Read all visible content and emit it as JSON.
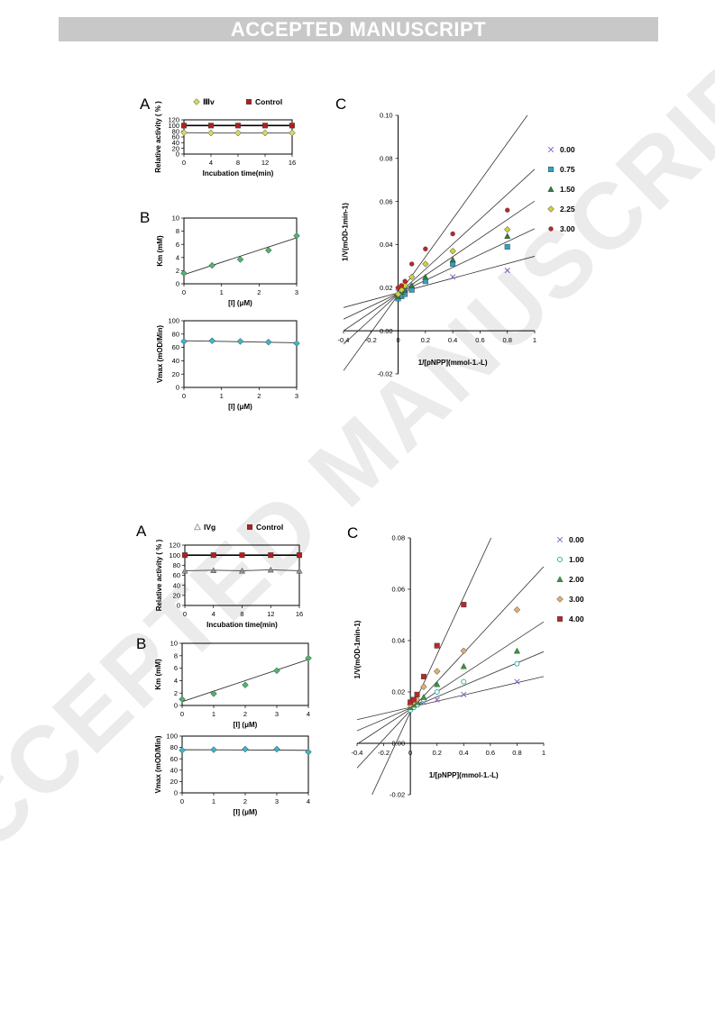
{
  "banner": "ACCEPTED MANUSCRIPT",
  "watermark": "ACCEPTED MANUSCRIPT",
  "chart_data": [
    {
      "panel": "A",
      "type": "line",
      "legend": [
        "Ⅲv",
        "Control"
      ],
      "xlabel": "Incubation time(min)",
      "ylabel": "Relative activity ( % )",
      "xlim": [
        0,
        16
      ],
      "ylim": [
        0,
        120
      ],
      "xticks": [
        0,
        4,
        8,
        12,
        16
      ],
      "yticks": [
        0,
        20,
        40,
        60,
        80,
        100,
        120
      ],
      "series": [
        {
          "name": "Ⅲv",
          "x": [
            0,
            4,
            8,
            12,
            16
          ],
          "y": [
            75,
            74,
            74,
            74,
            74
          ],
          "marker": "diamond",
          "color": "#d8d860"
        },
        {
          "name": "Control",
          "x": [
            0,
            4,
            8,
            12,
            16
          ],
          "y": [
            100,
            100,
            100,
            100,
            100
          ],
          "marker": "square",
          "color": "#b02020"
        }
      ]
    },
    {
      "panel": "B",
      "type": "scatter",
      "xlabel": "[I] (μM)",
      "ylabel": "Km (mM)",
      "xlim": [
        0,
        3
      ],
      "ylim": [
        0,
        10
      ],
      "xticks": [
        0,
        1,
        2,
        3
      ],
      "yticks": [
        0,
        2,
        4,
        6,
        8,
        10
      ],
      "points": {
        "x": [
          0,
          0.75,
          1.5,
          2.25,
          3
        ],
        "y": [
          1.6,
          2.8,
          3.7,
          5.1,
          7.3
        ]
      },
      "fit": [
        [
          0,
          1.4
        ],
        [
          3,
          7.0
        ]
      ]
    },
    {
      "type": "scatter",
      "xlabel": "[I] (μM)",
      "ylabel": "Vmax (mOD/Min)",
      "xlim": [
        0,
        3
      ],
      "ylim": [
        0,
        100
      ],
      "xticks": [
        0,
        1,
        2,
        3
      ],
      "yticks": [
        0,
        20,
        40,
        60,
        80,
        100
      ],
      "points": {
        "x": [
          0,
          0.75,
          1.5,
          2.25,
          3
        ],
        "y": [
          69,
          70,
          69,
          68,
          66
        ]
      },
      "fit": [
        [
          0,
          70
        ],
        [
          3,
          67
        ]
      ]
    },
    {
      "panel": "C",
      "type": "scatter",
      "xlabel": "1/[pNPP](mmol-1.-L)",
      "ylabel": "1/V(mOD-1min-1)",
      "xlim": [
        -0.4,
        1
      ],
      "ylim": [
        -0.02,
        0.1
      ],
      "xticks": [
        -0.4,
        -0.2,
        0,
        0.2,
        0.4,
        0.6,
        0.8,
        1
      ],
      "yticks": [
        -0.02,
        0,
        0.02,
        0.04,
        0.06,
        0.08,
        0.1
      ],
      "series": [
        {
          "name": "0.00",
          "marker": "x",
          "color": "#8a5cc4",
          "x": [
            0,
            0.025,
            0.05,
            0.1,
            0.2,
            0.4,
            0.8
          ],
          "y": [
            0.018,
            0.018,
            0.019,
            0.021,
            0.023,
            0.025,
            0.028
          ]
        },
        {
          "name": "0.75",
          "marker": "square",
          "color": "#33a0c8",
          "x": [
            0,
            0.025,
            0.05,
            0.1,
            0.2,
            0.4,
            0.8
          ],
          "y": [
            0.015,
            0.016,
            0.017,
            0.019,
            0.023,
            0.031,
            0.039
          ]
        },
        {
          "name": "1.50",
          "marker": "triangle",
          "color": "#2f7d3a",
          "x": [
            0,
            0.025,
            0.05,
            0.1,
            0.2,
            0.4,
            0.8
          ],
          "y": [
            0.016,
            0.018,
            0.019,
            0.021,
            0.025,
            0.033,
            0.044
          ]
        },
        {
          "name": "2.25",
          "marker": "diamond",
          "color": "#cfd040",
          "x": [
            0,
            0.025,
            0.05,
            0.1,
            0.2,
            0.4,
            0.8
          ],
          "y": [
            0.017,
            0.019,
            0.021,
            0.025,
            0.031,
            0.037,
            0.047
          ]
        },
        {
          "name": "3.00",
          "marker": "circle",
          "color": "#b52a2a",
          "x": [
            0,
            0.025,
            0.05,
            0.1,
            0.2,
            0.4,
            0.8
          ],
          "y": [
            0.02,
            0.021,
            0.023,
            0.031,
            0.038,
            0.045,
            0.056
          ]
        }
      ],
      "fit_lines": [
        {
          "a": 0.0176,
          "b": 0.017
        },
        {
          "a": 0.0174,
          "b": 0.03
        },
        {
          "a": 0.0172,
          "b": 0.043
        },
        {
          "a": 0.017,
          "b": 0.058
        },
        {
          "a": 0.0167,
          "b": 0.088
        }
      ]
    },
    {
      "panel": "A",
      "type": "line",
      "legend": [
        "IVg",
        "Control"
      ],
      "xlabel": "Incubation time(min)",
      "ylabel": "Relative activity ( % )",
      "xlim": [
        0,
        16
      ],
      "ylim": [
        0,
        120
      ],
      "xticks": [
        0,
        4,
        8,
        12,
        16
      ],
      "yticks": [
        0,
        20,
        40,
        60,
        80,
        100,
        120
      ],
      "series": [
        {
          "name": "IVg",
          "x": [
            0,
            4,
            8,
            12,
            16
          ],
          "y": [
            69,
            70,
            69,
            71,
            69
          ],
          "marker": "triangle",
          "color": "#909090"
        },
        {
          "name": "Control",
          "x": [
            0,
            4,
            8,
            12,
            16
          ],
          "y": [
            100,
            100,
            100,
            100,
            100
          ],
          "marker": "square",
          "color": "#b02020"
        }
      ]
    },
    {
      "panel": "B",
      "type": "scatter",
      "xlabel": "[I] (μM)",
      "ylabel": "Km (mM)",
      "xlim": [
        0,
        4
      ],
      "ylim": [
        0,
        10
      ],
      "xticks": [
        0,
        1,
        2,
        3,
        4
      ],
      "yticks": [
        0,
        2,
        4,
        6,
        8,
        10
      ],
      "points": {
        "x": [
          0,
          1,
          2,
          3,
          4
        ],
        "y": [
          1.0,
          1.9,
          3.3,
          5.6,
          7.6
        ]
      },
      "fit": [
        [
          0,
          0.6
        ],
        [
          4,
          7.4
        ]
      ]
    },
    {
      "type": "scatter",
      "xlabel": "[I] (μM)",
      "ylabel": "Vmax (mOD/Min)",
      "xlim": [
        0,
        4
      ],
      "ylim": [
        0,
        100
      ],
      "xticks": [
        0,
        1,
        2,
        3,
        4
      ],
      "yticks": [
        0,
        20,
        40,
        60,
        80,
        100
      ],
      "points": {
        "x": [
          0,
          1,
          2,
          3,
          4
        ],
        "y": [
          75,
          76,
          77,
          77,
          72
        ]
      },
      "fit": [
        [
          0,
          76
        ],
        [
          4,
          75
        ]
      ]
    },
    {
      "panel": "C",
      "type": "scatter",
      "xlabel": "1/[pNPP](mmol-1.-L)",
      "ylabel": "1/V(mOD-1min-1)",
      "xlim": [
        -0.4,
        1
      ],
      "ylim": [
        -0.02,
        0.08
      ],
      "xticks": [
        -0.4,
        -0.2,
        0,
        0.2,
        0.4,
        0.6,
        0.8,
        1
      ],
      "yticks": [
        -0.02,
        0,
        0.02,
        0.04,
        0.06,
        0.08
      ],
      "series": [
        {
          "name": "0.00",
          "marker": "x",
          "color": "#8a5cc4",
          "x": [
            0,
            0.025,
            0.05,
            0.1,
            0.2,
            0.4,
            0.8
          ],
          "y": [
            0.014,
            0.015,
            0.015,
            0.016,
            0.017,
            0.019,
            0.024
          ]
        },
        {
          "name": "1.00",
          "marker": "circle-open",
          "color": "#33b0b0",
          "x": [
            0,
            0.025,
            0.05,
            0.1,
            0.2,
            0.4,
            0.8
          ],
          "y": [
            0.013,
            0.014,
            0.015,
            0.017,
            0.02,
            0.024,
            0.031
          ]
        },
        {
          "name": "2.00",
          "marker": "triangle",
          "color": "#2f9a3a",
          "x": [
            0,
            0.025,
            0.05,
            0.1,
            0.2,
            0.4,
            0.8
          ],
          "y": [
            0.014,
            0.015,
            0.016,
            0.018,
            0.023,
            0.03,
            0.036
          ]
        },
        {
          "name": "3.00",
          "marker": "diamond",
          "color": "#e0b070",
          "x": [
            0,
            0.025,
            0.05,
            0.1,
            0.2,
            0.4,
            0.8
          ],
          "y": [
            0.015,
            0.016,
            0.017,
            0.022,
            0.028,
            0.036,
            0.052
          ]
        },
        {
          "name": "4.00",
          "marker": "square",
          "color": "#b52a2a",
          "x": [
            0,
            0.025,
            0.05,
            0.1,
            0.2,
            0.4
          ],
          "y": [
            0.016,
            0.017,
            0.019,
            0.026,
            0.038,
            0.054
          ]
        }
      ],
      "fit_lines": [
        {
          "a": 0.014,
          "b": 0.012
        },
        {
          "a": 0.0137,
          "b": 0.022
        },
        {
          "a": 0.0133,
          "b": 0.034
        },
        {
          "a": 0.0128,
          "b": 0.056
        },
        {
          "a": 0.0122,
          "b": 0.112
        }
      ]
    }
  ]
}
